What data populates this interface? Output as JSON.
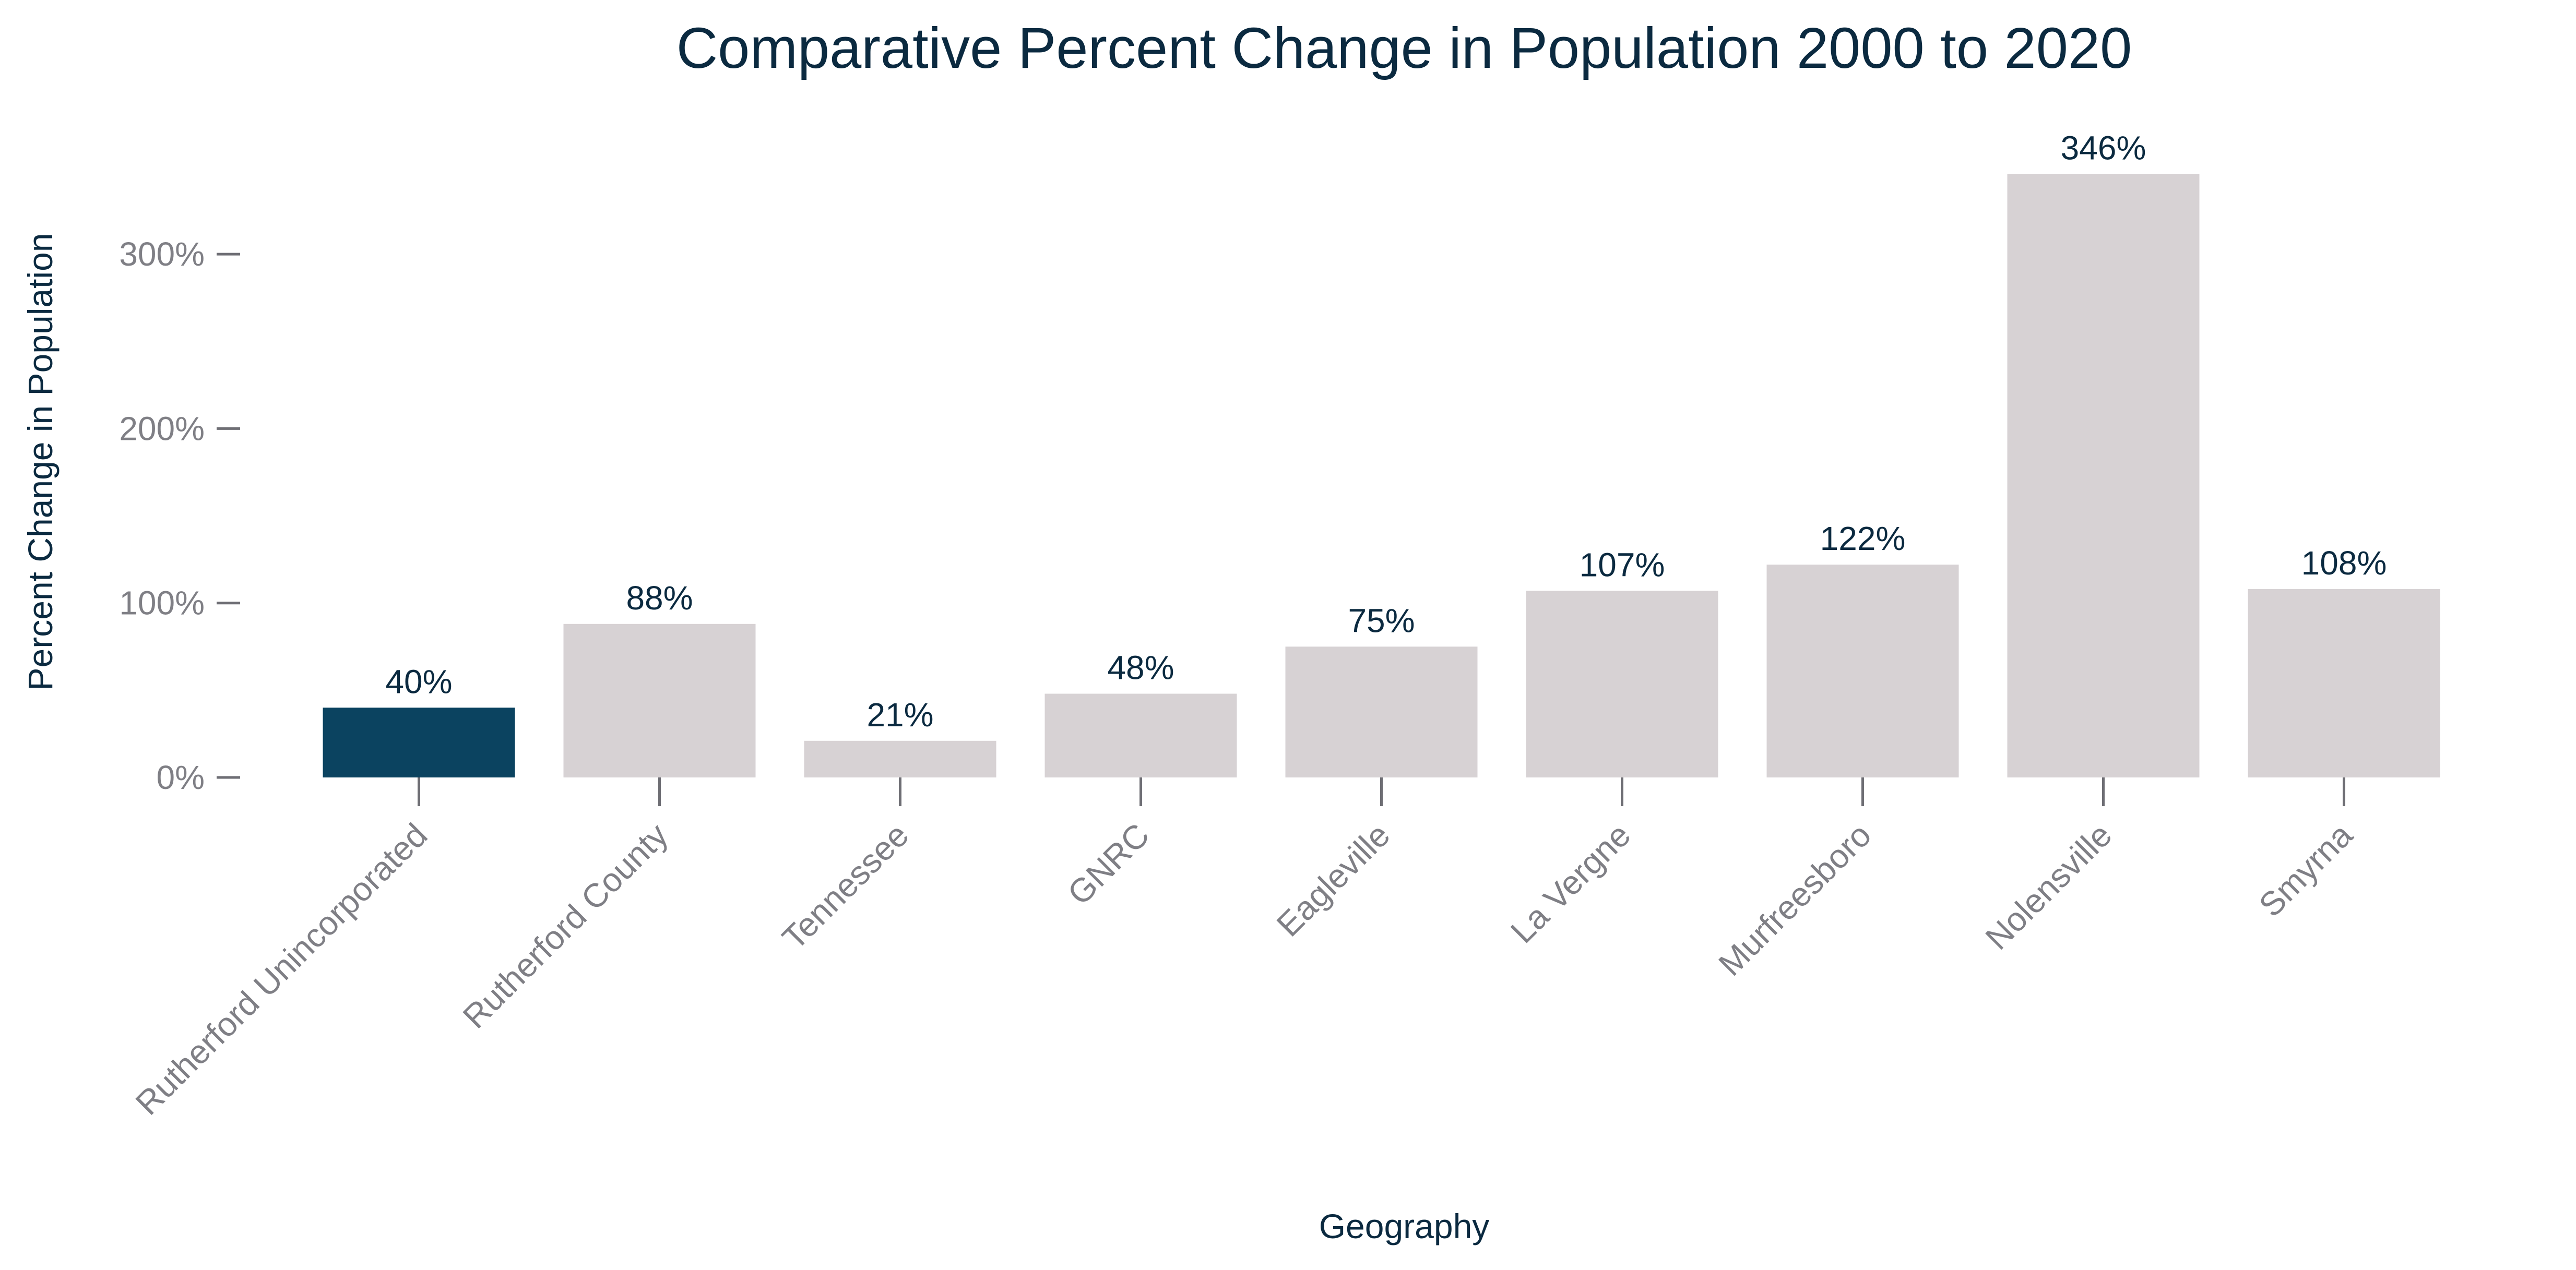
{
  "chart_data": {
    "type": "bar",
    "title": "Comparative Percent Change in Population 2000 to 2020",
    "xlabel": "Geography",
    "ylabel": "Percent Change in Population",
    "categories": [
      "Rutherford Unincorporated",
      "Rutherford County",
      "Tennessee",
      "GNRC",
      "Eagleville",
      "La Vergne",
      "Murfreesboro",
      "Nolensville",
      "Smyrna"
    ],
    "values": [
      40,
      88,
      21,
      48,
      75,
      107,
      122,
      346,
      108
    ],
    "data_labels": [
      "40%",
      "88%",
      "21%",
      "48%",
      "75%",
      "107%",
      "122%",
      "346%",
      "108%"
    ],
    "y_ticks": [
      0,
      100,
      200,
      300
    ],
    "y_tick_labels": [
      "0%",
      "100%",
      "200%",
      "300%"
    ],
    "ylim": [
      0,
      355
    ],
    "grid": false,
    "legend": "none",
    "colors": {
      "highlight": "#0b4360",
      "default": "#d7d2d4",
      "highlight_index": 0
    }
  }
}
